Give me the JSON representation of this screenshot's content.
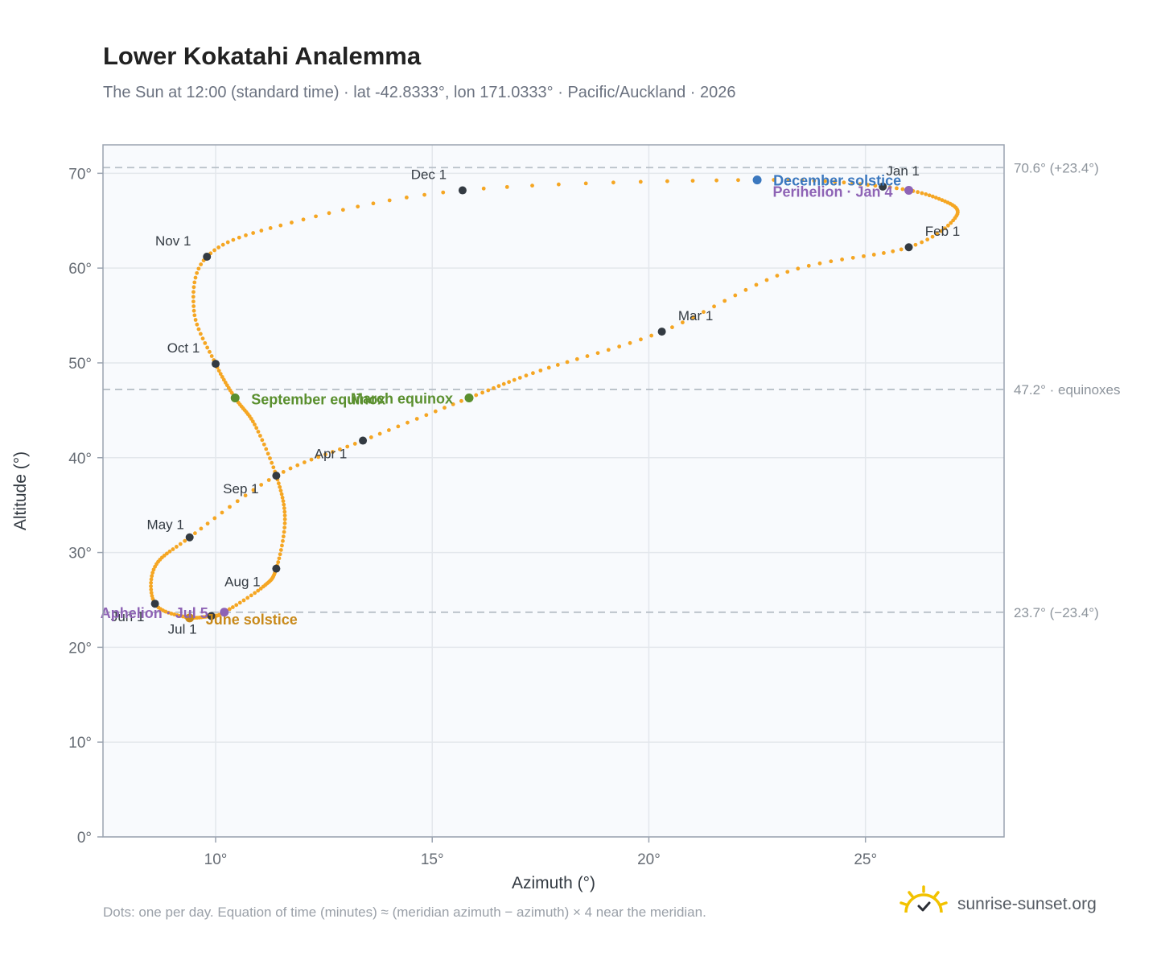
{
  "title": "Lower Kokatahi Analemma",
  "subtitle": "The Sun at 12:00 (standard time) · lat -42.8333°, lon 171.0333° · Pacific/Auckland · 2026",
  "footnote": "Dots: one per day. Equation of time (minutes) ≈ (meridian azimuth − azimuth) × 4 near the meridian.",
  "brand": {
    "text": "sunrise-sunset.org",
    "icon": "sun-logo-icon"
  },
  "colors": {
    "path": "#f5a623",
    "month_marker": "#333a42",
    "equinox": "#5a8f2e",
    "solstice_june": "#c8891a",
    "solstice_december": "#3b78bf",
    "apsis": "#8e63b5",
    "plot_bg": "#f8fafd",
    "grid": "#e3e7ec",
    "frame": "#9aa3b0",
    "ref_line": "#b8c0c8"
  },
  "chart_data": {
    "type": "scatter",
    "title": "Lower Kokatahi Analemma",
    "xlabel": "Azimuth (°)",
    "ylabel": "Altitude (°)",
    "xlim": [
      7.4,
      28.2
    ],
    "ylim": [
      0,
      73
    ],
    "x_ticks": [
      10,
      15,
      20,
      25
    ],
    "x_tick_labels": [
      "10°",
      "15°",
      "20°",
      "25°"
    ],
    "y_ticks": [
      0,
      10,
      20,
      30,
      40,
      50,
      60,
      70
    ],
    "y_tick_labels": [
      "0°",
      "10°",
      "20°",
      "30°",
      "40°",
      "50°",
      "60°",
      "70°"
    ],
    "grid": true,
    "series": [
      {
        "description": "analemma path (one dot per day)",
        "points": [
          [
            25.4,
            68.6
          ],
          [
            26.7,
            67.3
          ],
          [
            27.1,
            65.5
          ],
          [
            26.0,
            62.2
          ],
          [
            23.2,
            59.6
          ],
          [
            20.3,
            53.3
          ],
          [
            17.5,
            49.2
          ],
          [
            15.85,
            46.3
          ],
          [
            13.4,
            41.8
          ],
          [
            11.4,
            38.1
          ],
          [
            9.4,
            31.6
          ],
          [
            8.6,
            28.5
          ],
          [
            8.6,
            24.6
          ],
          [
            9.3,
            23.2
          ],
          [
            9.9,
            23.3
          ],
          [
            10.2,
            23.7
          ],
          [
            11.1,
            26.4
          ],
          [
            11.4,
            28.3
          ],
          [
            11.6,
            33.5
          ],
          [
            11.4,
            38.1
          ],
          [
            10.9,
            43.5
          ],
          [
            10.45,
            46.3
          ],
          [
            10.0,
            49.9
          ],
          [
            9.5,
            55.5
          ],
          [
            9.8,
            61.2
          ],
          [
            11.5,
            64.5
          ],
          [
            15.7,
            68.2
          ],
          [
            22.5,
            69.3
          ],
          [
            25.4,
            68.6
          ]
        ]
      }
    ],
    "reference_lines": [
      {
        "y": 70.6,
        "label": "70.6° (+23.4°)"
      },
      {
        "y": 47.2,
        "label": "47.2° · equinoxes"
      },
      {
        "y": 23.7,
        "label": "23.7° (−23.4°)"
      }
    ],
    "month_markers": [
      {
        "label": "Jan 1",
        "x": 25.4,
        "y": 68.6
      },
      {
        "label": "Feb 1",
        "x": 26.0,
        "y": 62.2
      },
      {
        "label": "Mar 1",
        "x": 20.3,
        "y": 53.3
      },
      {
        "label": "Apr 1",
        "x": 13.4,
        "y": 41.8
      },
      {
        "label": "May 1",
        "x": 9.4,
        "y": 31.6
      },
      {
        "label": "Jun 1",
        "x": 8.6,
        "y": 24.6
      },
      {
        "label": "Jul 1",
        "x": 9.9,
        "y": 23.3
      },
      {
        "label": "Aug 1",
        "x": 11.4,
        "y": 28.3
      },
      {
        "label": "Sep 1",
        "x": 11.4,
        "y": 38.1
      },
      {
        "label": "Oct 1",
        "x": 10.0,
        "y": 49.9
      },
      {
        "label": "Nov 1",
        "x": 9.8,
        "y": 61.2
      },
      {
        "label": "Dec 1",
        "x": 15.7,
        "y": 68.2
      }
    ],
    "events": [
      {
        "label": "December solstice",
        "x": 22.5,
        "y": 69.3,
        "kind": "solstice_december"
      },
      {
        "label": "Perihelion · Jan 4",
        "x": 26.0,
        "y": 68.2,
        "kind": "apsis"
      },
      {
        "label": "March equinox",
        "x": 15.85,
        "y": 46.3,
        "kind": "equinox"
      },
      {
        "label": "September equinox",
        "x": 10.45,
        "y": 46.3,
        "kind": "equinox"
      },
      {
        "label": "June solstice",
        "x": 9.4,
        "y": 23.1,
        "kind": "solstice_june"
      },
      {
        "label": "Aphelion · Jul 5",
        "x": 10.2,
        "y": 23.7,
        "kind": "apsis"
      }
    ]
  }
}
